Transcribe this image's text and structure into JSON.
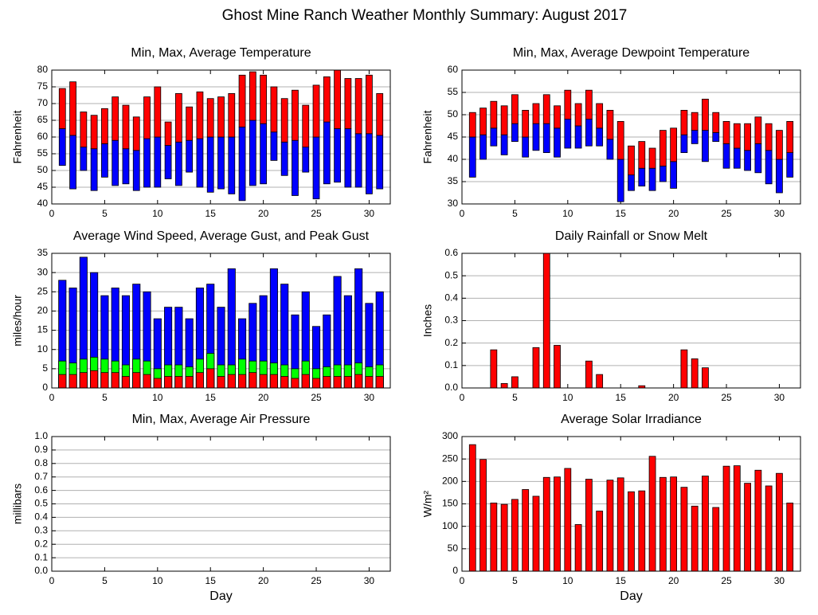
{
  "title": "Ghost Mine Ranch Weather Monthly Summary: August 2017",
  "chart_data": [
    {
      "type": "range",
      "title": "Min, Max, Average Temperature",
      "ylabel": "Fahrenheit",
      "x": [
        1,
        2,
        3,
        4,
        5,
        6,
        7,
        8,
        9,
        10,
        11,
        12,
        13,
        14,
        15,
        16,
        17,
        18,
        19,
        20,
        21,
        22,
        23,
        24,
        25,
        26,
        27,
        28,
        29,
        30,
        31
      ],
      "series": [
        {
          "values": [
            51.5,
            44.5,
            50,
            44,
            48,
            45.5,
            46,
            44,
            45,
            45,
            47.5,
            45.5,
            49.5,
            45,
            43.5,
            44.5,
            43,
            41,
            45.5,
            46,
            53,
            48.5,
            42.5,
            49.5,
            41.5,
            46,
            46.5,
            45,
            45,
            43,
            44.5
          ]
        },
        {
          "color": "#0000ff",
          "values": [
            62.5,
            60.5,
            57,
            56.5,
            58,
            59,
            56.5,
            56,
            59.5,
            60,
            57.5,
            58.5,
            59,
            59.5,
            60,
            60,
            60,
            63,
            65,
            64,
            61.5,
            58.5,
            59,
            57,
            60,
            64.5,
            62.5,
            62.5,
            61,
            61,
            60.5
          ]
        },
        {
          "color": "#ff0000",
          "values": [
            74.5,
            76.5,
            67.5,
            66.5,
            68.5,
            72,
            69.5,
            66,
            72,
            75,
            64.5,
            73,
            69,
            73.5,
            71.5,
            72,
            73,
            78.5,
            79.5,
            78.5,
            75,
            71.5,
            74,
            69.5,
            75.5,
            78,
            80,
            77.5,
            77.5,
            78.5,
            73
          ]
        }
      ],
      "xlim": [
        0,
        32
      ],
      "xticks": [
        0,
        5,
        10,
        15,
        20,
        25,
        30
      ],
      "ylim": [
        40,
        80
      ],
      "yticks": [
        40,
        45,
        50,
        55,
        60,
        65,
        70,
        75,
        80
      ],
      "grid": true
    },
    {
      "type": "range",
      "title": "Min, Max, Average Dewpoint Temperature",
      "ylabel": "Fahrenheit",
      "x": [
        1,
        2,
        3,
        4,
        5,
        6,
        7,
        8,
        9,
        10,
        11,
        12,
        13,
        14,
        15,
        16,
        17,
        18,
        19,
        20,
        21,
        22,
        23,
        24,
        25,
        26,
        27,
        28,
        29,
        30,
        31
      ],
      "series": [
        {
          "values": [
            36,
            40,
            43,
            41,
            44,
            40.5,
            42,
            41.5,
            40.5,
            42.5,
            42.5,
            43,
            43,
            40,
            30.5,
            33,
            34,
            33,
            35,
            33.5,
            41.5,
            43.5,
            39.5,
            44,
            38,
            38,
            37.5,
            37,
            34.5,
            32.5,
            36
          ]
        },
        {
          "color": "#0000ff",
          "values": [
            45,
            45.5,
            47,
            45.5,
            48,
            45,
            48,
            48,
            47,
            49,
            47.5,
            49,
            47,
            44.5,
            40,
            36.5,
            38,
            38,
            38.5,
            39.5,
            45.5,
            46.5,
            46.5,
            46,
            43.5,
            42.5,
            42,
            43.5,
            42,
            40,
            41.5
          ]
        },
        {
          "color": "#ff0000",
          "values": [
            50.5,
            51.5,
            53,
            52,
            54.5,
            51,
            52.5,
            54.5,
            52,
            55.5,
            52.5,
            55.5,
            52.5,
            51,
            48.5,
            43,
            44,
            42.5,
            46.5,
            47,
            51,
            50.5,
            53.5,
            50.5,
            48.5,
            48,
            48,
            49.5,
            48,
            46.5,
            48.5
          ]
        }
      ],
      "xlim": [
        0,
        32
      ],
      "xticks": [
        0,
        5,
        10,
        15,
        20,
        25,
        30
      ],
      "ylim": [
        30,
        60
      ],
      "yticks": [
        30,
        35,
        40,
        45,
        50,
        55,
        60
      ],
      "grid": true
    },
    {
      "type": "overlay_bar",
      "title": "Average Wind Speed, Average Gust, and Peak Gust",
      "ylabel": "miles/hour",
      "x": [
        1,
        2,
        3,
        4,
        5,
        6,
        7,
        8,
        9,
        10,
        11,
        12,
        13,
        14,
        15,
        16,
        17,
        18,
        19,
        20,
        21,
        22,
        23,
        24,
        25,
        26,
        27,
        28,
        29,
        30,
        31
      ],
      "series": [
        {
          "color": "#0000ff",
          "values": [
            28,
            26,
            34,
            30,
            24,
            26,
            24,
            27,
            25,
            18,
            21,
            21,
            18,
            26,
            27,
            21,
            31,
            18,
            22,
            24,
            31,
            27,
            19,
            25,
            16,
            19,
            29,
            24,
            31,
            22,
            25
          ]
        },
        {
          "color": "#00ff00",
          "values": [
            7,
            6.5,
            7.5,
            8,
            7.5,
            7,
            6,
            7.5,
            7,
            5,
            6,
            6,
            5.5,
            7.5,
            9,
            6,
            6,
            7.5,
            7,
            7,
            6.5,
            6,
            5,
            7,
            5,
            5.5,
            6,
            6,
            6.5,
            5.5,
            6
          ]
        },
        {
          "color": "#ff0000",
          "values": [
            3.5,
            3.5,
            4,
            4.5,
            4,
            4,
            3,
            4,
            3.5,
            2.5,
            3,
            3,
            3,
            4,
            5,
            3,
            3.5,
            3.5,
            4,
            3.5,
            3.5,
            3,
            2.5,
            3.5,
            2.5,
            3,
            3,
            3,
            3.5,
            3,
            3
          ]
        }
      ],
      "xlim": [
        0,
        32
      ],
      "xticks": [
        0,
        5,
        10,
        15,
        20,
        25,
        30
      ],
      "ylim": [
        0,
        35
      ],
      "yticks": [
        0,
        5,
        10,
        15,
        20,
        25,
        30,
        35
      ],
      "grid": true
    },
    {
      "type": "bar",
      "title": "Daily Rainfall or Snow Melt",
      "ylabel": "Inches",
      "color": "#ff0000",
      "x": [
        1,
        2,
        3,
        4,
        5,
        6,
        7,
        8,
        9,
        10,
        11,
        12,
        13,
        14,
        15,
        16,
        17,
        18,
        19,
        20,
        21,
        22,
        23,
        24,
        25,
        26,
        27,
        28,
        29,
        30,
        31
      ],
      "values": [
        0,
        0,
        0.17,
        0.02,
        0.05,
        0,
        0.18,
        0.6,
        0.19,
        0,
        0,
        0.12,
        0.06,
        0,
        0,
        0,
        0.01,
        0,
        0,
        0,
        0.17,
        0.13,
        0.09,
        0,
        0,
        0,
        0,
        0,
        0,
        0,
        0
      ],
      "xlim": [
        0,
        32
      ],
      "xticks": [
        0,
        5,
        10,
        15,
        20,
        25,
        30
      ],
      "ylim": [
        0,
        0.6
      ],
      "yticks": [
        {
          "value": 0,
          "label": "0.0"
        },
        0.1,
        0.2,
        0.3,
        0.4,
        0.5,
        0.6
      ],
      "grid": true
    },
    {
      "type": "bar",
      "title": "Min, Max, Average Air Pressure",
      "ylabel": "millibars",
      "xlabel": "Day",
      "xlim": [
        0,
        32
      ],
      "xticks": [
        0,
        5,
        10,
        15,
        20,
        25,
        30
      ],
      "ylim": [
        0,
        1
      ],
      "yticks": [
        {
          "value": 0,
          "label": "0.0"
        },
        0.1,
        0.2,
        0.3,
        0.4,
        0.5,
        0.6,
        0.7,
        0.8,
        0.9,
        {
          "value": 1,
          "label": "1.0"
        }
      ],
      "grid": true
    },
    {
      "type": "bar",
      "title": "Average Solar Irradiance",
      "ylabel": "W/m²",
      "xlabel": "Day",
      "color": "#ff0000",
      "x": [
        1,
        2,
        3,
        4,
        5,
        6,
        7,
        8,
        9,
        10,
        11,
        12,
        13,
        14,
        15,
        16,
        17,
        18,
        19,
        20,
        21,
        22,
        23,
        24,
        25,
        26,
        27,
        28,
        29,
        30,
        31
      ],
      "values": [
        282,
        249,
        152,
        149,
        160,
        182,
        167,
        209,
        210,
        229,
        104,
        205,
        134,
        203,
        208,
        177,
        179,
        256,
        209,
        210,
        187,
        145,
        212,
        142,
        234,
        235,
        196,
        225,
        190,
        218,
        152
      ],
      "xlim": [
        0,
        32
      ],
      "xticks": [
        0,
        5,
        10,
        15,
        20,
        25,
        30
      ],
      "ylim": [
        0,
        300
      ],
      "yticks": [
        0,
        50,
        100,
        150,
        200,
        250,
        300
      ],
      "grid": true
    }
  ]
}
